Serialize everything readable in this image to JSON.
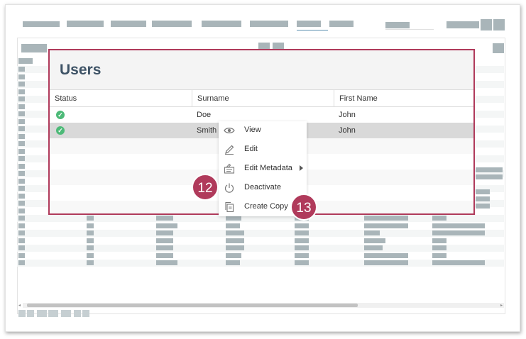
{
  "dialog": {
    "title": "Users",
    "columns": [
      "Status",
      "Surname",
      "First Name"
    ],
    "rows": [
      {
        "status": "active",
        "surname": "Doe",
        "first_name": "John",
        "selected": false
      },
      {
        "status": "active",
        "surname": "Smith",
        "first_name": "John",
        "selected": true
      }
    ]
  },
  "context_menu": {
    "items": [
      {
        "label": "View",
        "icon": "eye-icon"
      },
      {
        "label": "Edit",
        "icon": "pencil-icon"
      },
      {
        "label": "Edit Metadata",
        "icon": "metadata-icon",
        "has_submenu": true
      },
      {
        "label": "Deactivate",
        "icon": "power-icon"
      },
      {
        "label": "Create Copy",
        "icon": "copy-icon"
      }
    ]
  },
  "callouts": {
    "deactivate": "12",
    "create_copy": "13"
  },
  "colors": {
    "accent": "#b03a5b",
    "title": "#3e5366",
    "status_ok": "#4dba78",
    "placeholder": "#a9b5b9"
  }
}
